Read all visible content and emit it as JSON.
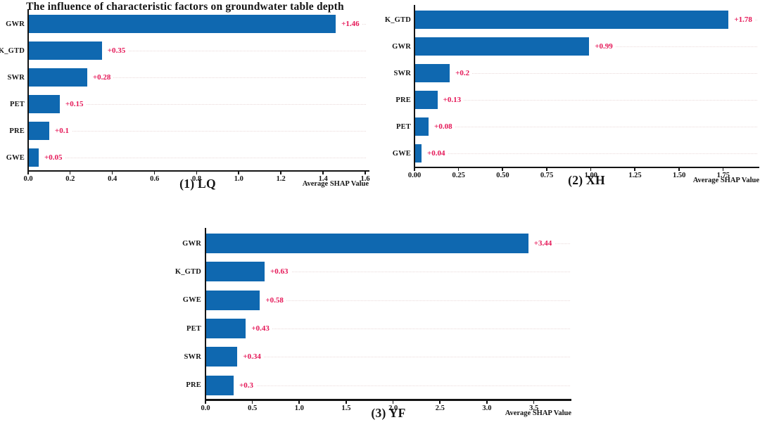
{
  "title": "The influence of characteristic factors on groundwater table depth",
  "colors": {
    "background": "#ffffff",
    "bar": "#0f68b0",
    "value_label": "#e51757",
    "axis": "#141414",
    "grid": "#ead9d9"
  },
  "chart_data": [
    {
      "type": "bar",
      "orientation": "horizontal",
      "name": "(1) LQ",
      "xlabel": "Average SHAP Value",
      "categories": [
        "GWR",
        "K_GTD",
        "SWR",
        "PET",
        "PRE",
        "GWE"
      ],
      "values": [
        1.46,
        0.35,
        0.28,
        0.15,
        0.1,
        0.05
      ],
      "value_labels": [
        "+1.46",
        "+0.35",
        "+0.28",
        "+0.15",
        "+0.1",
        "+0.05"
      ],
      "ticks": [
        "0.0",
        "0.2",
        "0.4",
        "0.6",
        "0.8",
        "1.0",
        "1.2",
        "1.4",
        "1.6"
      ],
      "tick_values": [
        0.0,
        0.2,
        0.4,
        0.6,
        0.8,
        1.0,
        1.2,
        1.4,
        1.6
      ],
      "xlim": [
        0,
        1.61
      ],
      "grid": "dotted-horizontal",
      "legend": null
    },
    {
      "type": "bar",
      "orientation": "horizontal",
      "name": "(2) XH",
      "xlabel": "Average SHAP Value",
      "categories": [
        "K_GTD",
        "GWR",
        "SWR",
        "PRE",
        "PET",
        "GWE"
      ],
      "values": [
        1.78,
        0.99,
        0.2,
        0.13,
        0.08,
        0.04
      ],
      "value_labels": [
        "+1.78",
        "+0.99",
        "+0.2",
        "+0.13",
        "+0.08",
        "+0.04"
      ],
      "ticks": [
        "0.00",
        "0.25",
        "0.50",
        "0.75",
        "1.00",
        "1.25",
        "1.50",
        "1.75"
      ],
      "tick_values": [
        0.0,
        0.25,
        0.5,
        0.75,
        1.0,
        1.25,
        1.5,
        1.75
      ],
      "xlim": [
        0,
        1.95
      ],
      "grid": "dotted-horizontal",
      "legend": null
    },
    {
      "type": "bar",
      "orientation": "horizontal",
      "name": "(3) YF",
      "xlabel": "Average SHAP Value",
      "categories": [
        "GWR",
        "K_GTD",
        "GWE",
        "PET",
        "SWR",
        "PRE"
      ],
      "values": [
        3.44,
        0.63,
        0.58,
        0.43,
        0.34,
        0.3
      ],
      "value_labels": [
        "+3.44",
        "+0.63",
        "+0.58",
        "+0.43",
        "+0.34",
        "+0.3"
      ],
      "ticks": [
        "0.0",
        "0.5",
        "1.0",
        "1.5",
        "2.0",
        "2.5",
        "3.0",
        "3.5"
      ],
      "tick_values": [
        0.0,
        0.5,
        1.0,
        1.5,
        2.0,
        2.5,
        3.0,
        3.5
      ],
      "xlim": [
        0,
        3.9
      ],
      "grid": "dotted-horizontal",
      "legend": null
    }
  ]
}
